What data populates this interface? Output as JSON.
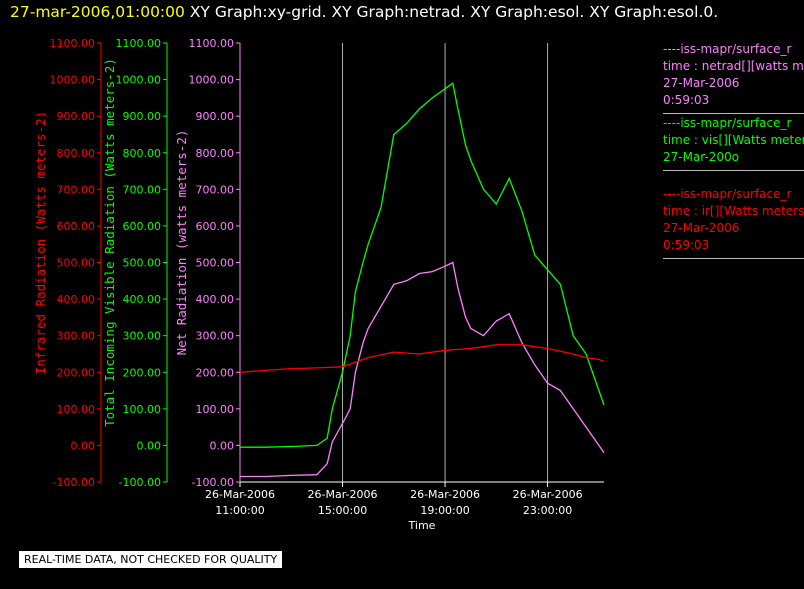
{
  "header": {
    "date": "27-mar-2006,01:00:00",
    "rest": "XY Graph:xy-grid.  XY Graph:netrad.  XY Graph:esol.  XY Graph:esol.0."
  },
  "notice": "REAL-TIME DATA, NOT CHECKED FOR QUALITY",
  "legend": [
    {
      "color": "#ff80ff",
      "lines": [
        "----iss-mapr/surface_r",
        "time : netrad[][watts m",
        "27-Mar-2006",
        "0:59:03"
      ]
    },
    {
      "color": "#00ff00",
      "lines": [
        "----iss-mapr/surface_r",
        "time : vis[][Watts meter",
        "27-Mar-200o"
      ]
    },
    {
      "color": "#ff0000",
      "lines": [
        "----iss-mapr/surface_r",
        "time : ir[][Watts meters",
        "27-Mar-2006",
        "0:59:03"
      ]
    }
  ],
  "chart_data": {
    "type": "line",
    "xlabel": "Time",
    "xticks": [
      {
        "hour": 11,
        "date": "26-Mar-2006",
        "time": "11:00:00"
      },
      {
        "hour": 15,
        "date": "26-Mar-2006",
        "time": "15:00:00"
      },
      {
        "hour": 19,
        "date": "26-Mar-2006",
        "time": "19:00:00"
      },
      {
        "hour": 23,
        "date": "26-Mar-2006",
        "time": "23:00:00"
      }
    ],
    "xlim_hours": [
      11,
      25.2
    ],
    "vgrid_hours": [
      15,
      19,
      23
    ],
    "axes": [
      {
        "id": "ir",
        "label": "Infrared Radiation (Watts meters-2)",
        "color": "#ff0000",
        "ylim": [
          -100,
          1100
        ],
        "ticks": [
          "1100.00",
          "1000.00",
          "900.00",
          "800.00",
          "700.00",
          "600.00",
          "500.00",
          "400.00",
          "300.00",
          "200.00",
          "100.00",
          "0.00",
          "-100.00"
        ]
      },
      {
        "id": "vis",
        "label": "Total Incoming Visible Radiation (Watts meters-2)",
        "color": "#00ff00",
        "ylim": [
          -100,
          1100
        ],
        "ticks": [
          "1100.00",
          "1000.00",
          "900.00",
          "800.00",
          "700.00",
          "600.00",
          "500.00",
          "400.00",
          "300.00",
          "200.00",
          "100.00",
          "0.00",
          "-100.00"
        ]
      },
      {
        "id": "net",
        "label": "Net Radiation (watts meters-2)",
        "color": "#ff80ff",
        "ylim": [
          -100,
          1100
        ],
        "ticks": [
          "1100.00",
          "1000.00",
          "900.00",
          "800.00",
          "700.00",
          "600.00",
          "500.00",
          "400.00",
          "300.00",
          "200.00",
          "100.00",
          "0.00",
          "-100.00"
        ]
      }
    ],
    "series": [
      {
        "axis": "net",
        "color": "#ff80ff",
        "x": [
          11,
          12,
          13,
          14,
          14.4,
          14.6,
          15,
          15.3,
          15.5,
          15.8,
          16,
          16.5,
          17,
          17.5,
          18,
          18.5,
          19,
          19.3,
          19.5,
          19.8,
          20,
          20.5,
          21,
          21.5,
          22,
          22.5,
          23,
          23.5,
          24,
          24.5,
          25,
          25.2
        ],
        "values": [
          -85,
          -85,
          -82,
          -80,
          -50,
          10,
          60,
          100,
          200,
          280,
          320,
          380,
          440,
          450,
          470,
          475,
          490,
          500,
          430,
          350,
          320,
          300,
          340,
          360,
          280,
          220,
          170,
          150,
          100,
          50,
          0,
          -20
        ]
      },
      {
        "axis": "vis",
        "color": "#00ff00",
        "x": [
          11,
          12,
          13,
          14,
          14.4,
          14.6,
          15,
          15.3,
          15.5,
          15.8,
          16,
          16.5,
          17,
          17.5,
          18,
          18.5,
          19,
          19.3,
          19.5,
          19.8,
          20,
          20.5,
          21,
          21.5,
          22,
          22.5,
          23,
          23.5,
          24,
          24.5,
          25,
          25.2
        ],
        "values": [
          -5,
          -5,
          -3,
          0,
          20,
          100,
          200,
          300,
          420,
          500,
          550,
          650,
          850,
          880,
          920,
          950,
          975,
          990,
          920,
          820,
          780,
          700,
          660,
          730,
          640,
          520,
          480,
          440,
          300,
          250,
          150,
          110
        ]
      },
      {
        "axis": "ir",
        "color": "#ff0000",
        "x": [
          11,
          12,
          13,
          14,
          15,
          16,
          17,
          18,
          19,
          20,
          21,
          22,
          23,
          24,
          24.5,
          25,
          25.2
        ],
        "values": [
          200,
          205,
          210,
          212,
          215,
          240,
          255,
          250,
          260,
          265,
          275,
          275,
          265,
          250,
          240,
          235,
          230
        ]
      }
    ]
  }
}
